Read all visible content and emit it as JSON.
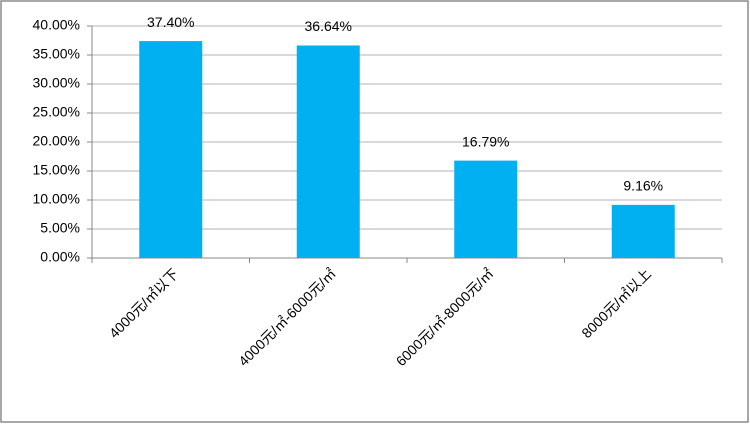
{
  "chart_data": {
    "type": "bar",
    "categories": [
      "4000元/㎡以下",
      "4000元/㎡-6000元/㎡",
      "6000元/㎡-8000元/㎡",
      "8000元/㎡以上"
    ],
    "values": [
      37.4,
      36.64,
      16.79,
      9.16
    ],
    "value_labels": [
      "37.40%",
      "36.64%",
      "16.79%",
      "9.16%"
    ],
    "color": "#00b0f0",
    "ylim": [
      0,
      40
    ],
    "yticks": [
      {
        "value": 0,
        "label": "0.00%"
      },
      {
        "value": 5,
        "label": "5.00%"
      },
      {
        "value": 10,
        "label": "10.00%"
      },
      {
        "value": 15,
        "label": "15.00%"
      },
      {
        "value": 20,
        "label": "20.00%"
      },
      {
        "value": 25,
        "label": "25.00%"
      },
      {
        "value": 30,
        "label": "30.00%"
      },
      {
        "value": 35,
        "label": "35.00%"
      },
      {
        "value": 40,
        "label": "40.00%"
      }
    ],
    "grid": true
  }
}
